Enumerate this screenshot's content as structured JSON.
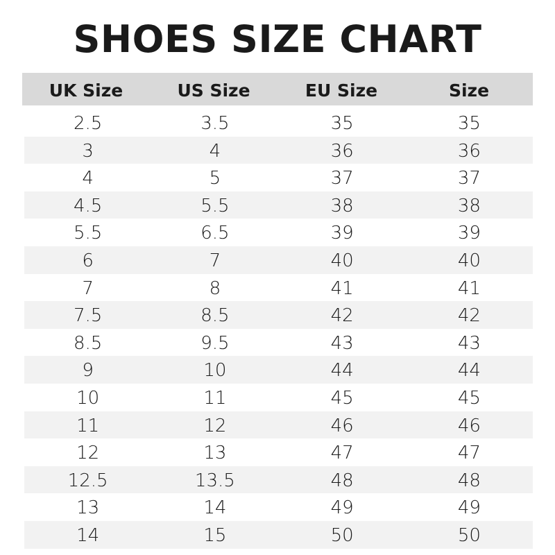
{
  "title": "SHOES SIZE CHART",
  "colors": {
    "header_bg": "#d9d9d9",
    "stripe_bg": "#f2f2f2"
  },
  "headers": [
    "UK Size",
    "US Size",
    "EU Size",
    "Size"
  ],
  "rows": [
    [
      "2.5",
      "3.5",
      "35",
      "35"
    ],
    [
      "3",
      "4",
      "36",
      "36"
    ],
    [
      "4",
      "5",
      "37",
      "37"
    ],
    [
      "4.5",
      "5.5",
      "38",
      "38"
    ],
    [
      "5.5",
      "6.5",
      "39",
      "39"
    ],
    [
      "6",
      "7",
      "40",
      "40"
    ],
    [
      "7",
      "8",
      "41",
      "41"
    ],
    [
      "7.5",
      "8.5",
      "42",
      "42"
    ],
    [
      "8.5",
      "9.5",
      "43",
      "43"
    ],
    [
      "9",
      "10",
      "44",
      "44"
    ],
    [
      "10",
      "11",
      "45",
      "45"
    ],
    [
      "11",
      "12",
      "46",
      "46"
    ],
    [
      "12",
      "13",
      "47",
      "47"
    ],
    [
      "12.5",
      "13.5",
      "48",
      "48"
    ],
    [
      "13",
      "14",
      "49",
      "49"
    ],
    [
      "14",
      "15",
      "50",
      "50"
    ]
  ]
}
